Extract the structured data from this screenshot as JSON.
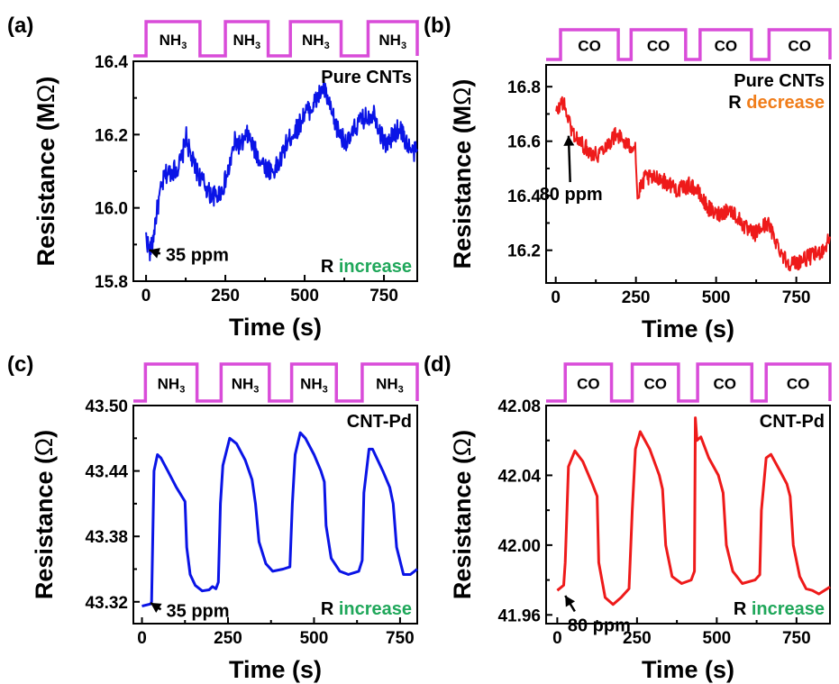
{
  "colors": {
    "pulse": "#d94cd9",
    "blue": "#0a14e6",
    "red": "#ee1a1a",
    "green": "#1fa75a",
    "orange": "#f07d1a"
  },
  "chart_data": [
    {
      "id": "a",
      "type": "line",
      "panel_label": "(a)",
      "sample_label": "Pure CNTs",
      "xlabel": "Time (s)",
      "ylabel_text": "Resistance (M",
      "ylabel_unit": "Ω",
      "ylabel_close": ")",
      "xlim": [
        -40,
        855
      ],
      "ylim": [
        15.8,
        16.4
      ],
      "xticks": [
        0,
        250,
        500,
        750
      ],
      "xtick_labels": [
        "0",
        "250",
        "500",
        "750"
      ],
      "yticks": [
        15.8,
        16.0,
        16.2,
        16.4
      ],
      "ytick_labels": [
        "15.8",
        "16.0",
        "16.2",
        "16.4"
      ],
      "gas": {
        "main": "NH",
        "sub": "3",
        "pulses": [
          [
            0,
            170
          ],
          [
            250,
            385
          ],
          [
            455,
            615
          ],
          [
            700,
            855
          ]
        ]
      },
      "annotation": {
        "text": "35 ppm",
        "arrow_from": [
          45,
          15.875
        ],
        "arrow_to": [
          10,
          15.885
        ]
      },
      "trend": {
        "prefix": "R ",
        "word": "increase",
        "word_color": "green"
      },
      "series": [
        {
          "color": "blue",
          "noise": 0.028,
          "points": [
            [
              0,
              15.92
            ],
            [
              12,
              15.88
            ],
            [
              20,
              15.9
            ],
            [
              30,
              15.97
            ],
            [
              45,
              16.04
            ],
            [
              60,
              16.09
            ],
            [
              80,
              16.1
            ],
            [
              100,
              16.11
            ],
            [
              115,
              16.14
            ],
            [
              125,
              16.2
            ],
            [
              140,
              16.14
            ],
            [
              160,
              16.1
            ],
            [
              180,
              16.07
            ],
            [
              200,
              16.04
            ],
            [
              220,
              16.03
            ],
            [
              240,
              16.05
            ],
            [
              260,
              16.1
            ],
            [
              280,
              16.18
            ],
            [
              300,
              16.17
            ],
            [
              320,
              16.2
            ],
            [
              340,
              16.16
            ],
            [
              360,
              16.13
            ],
            [
              380,
              16.11
            ],
            [
              400,
              16.1
            ],
            [
              420,
              16.12
            ],
            [
              440,
              16.17
            ],
            [
              460,
              16.2
            ],
            [
              480,
              16.22
            ],
            [
              500,
              16.26
            ],
            [
              520,
              16.27
            ],
            [
              540,
              16.3
            ],
            [
              560,
              16.33
            ],
            [
              580,
              16.27
            ],
            [
              600,
              16.22
            ],
            [
              620,
              16.19
            ],
            [
              640,
              16.18
            ],
            [
              660,
              16.22
            ],
            [
              680,
              16.24
            ],
            [
              700,
              16.25
            ],
            [
              720,
              16.26
            ],
            [
              740,
              16.2
            ],
            [
              760,
              16.17
            ],
            [
              780,
              16.2
            ],
            [
              800,
              16.22
            ],
            [
              820,
              16.18
            ],
            [
              840,
              16.15
            ],
            [
              855,
              16.16
            ]
          ]
        }
      ]
    },
    {
      "id": "b",
      "type": "line",
      "panel_label": "(b)",
      "sample_label": "Pure CNTs",
      "xlabel": "Time (s)",
      "ylabel_text": "Resistance (M",
      "ylabel_unit": "Ω",
      "ylabel_close": ")",
      "xlim": [
        -30,
        855
      ],
      "ylim": [
        16.08,
        16.88
      ],
      "xticks": [
        0,
        250,
        500,
        750
      ],
      "xtick_labels": [
        "0",
        "250",
        "500",
        "750"
      ],
      "yticks": [
        16.2,
        16.4,
        16.6,
        16.8
      ],
      "ytick_labels": [
        "16.2",
        "16.4",
        "16.6",
        "16.8"
      ],
      "gas": {
        "main": "CO",
        "sub": "",
        "pulses": [
          [
            15,
            195
          ],
          [
            235,
            405
          ],
          [
            450,
            610
          ],
          [
            665,
            855
          ]
        ]
      },
      "annotation": {
        "text": "80 ppm",
        "arrow_from": [
          45,
          16.45
        ],
        "arrow_to": [
          40,
          16.62
        ]
      },
      "trend": {
        "prefix": "R ",
        "word": "decrease",
        "word_color": "orange"
      },
      "series": [
        {
          "color": "red",
          "noise": 0.03,
          "points": [
            [
              0,
              16.7
            ],
            [
              10,
              16.72
            ],
            [
              20,
              16.75
            ],
            [
              35,
              16.7
            ],
            [
              50,
              16.64
            ],
            [
              70,
              16.6
            ],
            [
              90,
              16.58
            ],
            [
              110,
              16.56
            ],
            [
              130,
              16.55
            ],
            [
              150,
              16.58
            ],
            [
              170,
              16.6
            ],
            [
              190,
              16.63
            ],
            [
              210,
              16.6
            ],
            [
              230,
              16.58
            ],
            [
              248,
              16.59
            ],
            [
              255,
              16.38
            ],
            [
              262,
              16.42
            ],
            [
              280,
              16.47
            ],
            [
              300,
              16.46
            ],
            [
              320,
              16.47
            ],
            [
              340,
              16.45
            ],
            [
              360,
              16.44
            ],
            [
              380,
              16.42
            ],
            [
              400,
              16.43
            ],
            [
              420,
              16.44
            ],
            [
              440,
              16.42
            ],
            [
              460,
              16.38
            ],
            [
              480,
              16.35
            ],
            [
              500,
              16.33
            ],
            [
              520,
              16.34
            ],
            [
              540,
              16.35
            ],
            [
              560,
              16.33
            ],
            [
              580,
              16.3
            ],
            [
              600,
              16.27
            ],
            [
              620,
              16.26
            ],
            [
              640,
              16.28
            ],
            [
              660,
              16.3
            ],
            [
              680,
              16.25
            ],
            [
              700,
              16.2
            ],
            [
              720,
              16.16
            ],
            [
              740,
              16.15
            ],
            [
              760,
              16.16
            ],
            [
              780,
              16.17
            ],
            [
              800,
              16.18
            ],
            [
              820,
              16.19
            ],
            [
              840,
              16.21
            ],
            [
              855,
              16.25
            ]
          ]
        }
      ]
    },
    {
      "id": "c",
      "type": "line",
      "panel_label": "(c)",
      "sample_label": "CNT-Pd",
      "xlabel": "Time (s)",
      "ylabel_text": "Resistance (",
      "ylabel_unit": "Ω",
      "ylabel_close": ")",
      "xlim": [
        -25,
        800
      ],
      "ylim": [
        43.3,
        43.5
      ],
      "xticks": [
        0,
        250,
        500,
        750
      ],
      "xtick_labels": [
        "0",
        "250",
        "500",
        "750"
      ],
      "yticks": [
        43.32,
        43.38,
        43.44,
        43.5
      ],
      "ytick_labels": [
        "43.32",
        "43.38",
        "43.44",
        "43.50"
      ],
      "gas": {
        "main": "NH",
        "sub": "3",
        "pulses": [
          [
            10,
            160
          ],
          [
            230,
            370
          ],
          [
            435,
            565
          ],
          [
            640,
            800
          ]
        ]
      },
      "annotation": {
        "text": "35 ppm",
        "arrow_from": [
          55,
          43.313
        ],
        "arrow_to": [
          25,
          43.319
        ]
      },
      "trend": {
        "prefix": "R ",
        "word": "increase",
        "word_color": "green"
      },
      "series": [
        {
          "color": "blue",
          "noise": 0,
          "points": [
            [
              0,
              43.316
            ],
            [
              25,
              43.318
            ],
            [
              28,
              43.32
            ],
            [
              35,
              43.44
            ],
            [
              45,
              43.455
            ],
            [
              55,
              43.452
            ],
            [
              75,
              43.44
            ],
            [
              100,
              43.425
            ],
            [
              125,
              43.412
            ],
            [
              130,
              43.37
            ],
            [
              140,
              43.345
            ],
            [
              155,
              43.335
            ],
            [
              175,
              43.33
            ],
            [
              195,
              43.331
            ],
            [
              205,
              43.334
            ],
            [
              215,
              43.332
            ],
            [
              222,
              43.338
            ],
            [
              228,
              43.41
            ],
            [
              235,
              43.445
            ],
            [
              255,
              43.47
            ],
            [
              275,
              43.465
            ],
            [
              300,
              43.45
            ],
            [
              320,
              43.432
            ],
            [
              330,
              43.41
            ],
            [
              340,
              43.375
            ],
            [
              360,
              43.355
            ],
            [
              380,
              43.348
            ],
            [
              410,
              43.35
            ],
            [
              430,
              43.352
            ],
            [
              437,
              43.41
            ],
            [
              445,
              43.455
            ],
            [
              460,
              43.475
            ],
            [
              475,
              43.47
            ],
            [
              500,
              43.455
            ],
            [
              520,
              43.44
            ],
            [
              530,
              43.43
            ],
            [
              535,
              43.39
            ],
            [
              550,
              43.36
            ],
            [
              575,
              43.348
            ],
            [
              600,
              43.345
            ],
            [
              630,
              43.348
            ],
            [
              640,
              43.358
            ],
            [
              645,
              43.42
            ],
            [
              660,
              43.46
            ],
            [
              670,
              43.46
            ],
            [
              700,
              43.44
            ],
            [
              720,
              43.425
            ],
            [
              730,
              43.41
            ],
            [
              740,
              43.37
            ],
            [
              760,
              43.345
            ],
            [
              780,
              43.345
            ],
            [
              800,
              43.35
            ]
          ]
        }
      ]
    },
    {
      "id": "d",
      "type": "line",
      "panel_label": "(d)",
      "sample_label": "CNT-Pd",
      "xlabel": "Time (s)",
      "ylabel_text": "Resistance (",
      "ylabel_unit": "Ω",
      "ylabel_close": ")",
      "xlim": [
        -35,
        855
      ],
      "ylim": [
        41.955,
        42.08
      ],
      "xticks": [
        0,
        250,
        500,
        750
      ],
      "xtick_labels": [
        "0",
        "250",
        "500",
        "750"
      ],
      "yticks": [
        41.96,
        42.0,
        42.04,
        42.08
      ],
      "ytick_labels": [
        "41.96",
        "42.00",
        "42.04",
        "42.08"
      ],
      "gas": {
        "main": "CO",
        "sub": "",
        "pulses": [
          [
            25,
            170
          ],
          [
            235,
            380
          ],
          [
            440,
            610
          ],
          [
            655,
            855
          ]
        ]
      },
      "annotation": {
        "text": "80 ppm",
        "arrow_from": [
          55,
          41.962
        ],
        "arrow_to": [
          25,
          41.971
        ]
      },
      "trend": {
        "prefix": "R ",
        "word": "increase",
        "word_color": "green"
      },
      "series": [
        {
          "color": "red",
          "noise": 0,
          "points": [
            [
              0,
              41.974
            ],
            [
              20,
              41.977
            ],
            [
              25,
              41.99
            ],
            [
              35,
              42.045
            ],
            [
              55,
              42.054
            ],
            [
              80,
              42.048
            ],
            [
              110,
              42.035
            ],
            [
              125,
              42.028
            ],
            [
              130,
              41.99
            ],
            [
              150,
              41.97
            ],
            [
              175,
              41.966
            ],
            [
              200,
              41.97
            ],
            [
              225,
              41.975
            ],
            [
              235,
              42.02
            ],
            [
              245,
              42.055
            ],
            [
              260,
              42.065
            ],
            [
              290,
              42.055
            ],
            [
              320,
              42.04
            ],
            [
              330,
              42.032
            ],
            [
              340,
              42.0
            ],
            [
              360,
              41.982
            ],
            [
              390,
              41.978
            ],
            [
              420,
              41.98
            ],
            [
              430,
              41.985
            ],
            [
              433,
              42.073
            ],
            [
              438,
              42.06
            ],
            [
              450,
              42.062
            ],
            [
              475,
              42.05
            ],
            [
              505,
              42.04
            ],
            [
              520,
              42.03
            ],
            [
              530,
              42.0
            ],
            [
              550,
              41.985
            ],
            [
              580,
              41.978
            ],
            [
              620,
              41.98
            ],
            [
              635,
              41.983
            ],
            [
              640,
              42.02
            ],
            [
              655,
              42.05
            ],
            [
              670,
              42.052
            ],
            [
              700,
              42.042
            ],
            [
              720,
              42.035
            ],
            [
              730,
              42.028
            ],
            [
              740,
              42.0
            ],
            [
              760,
              41.982
            ],
            [
              780,
              41.975
            ],
            [
              800,
              41.974
            ],
            [
              820,
              41.972
            ],
            [
              855,
              41.976
            ]
          ]
        }
      ]
    }
  ]
}
